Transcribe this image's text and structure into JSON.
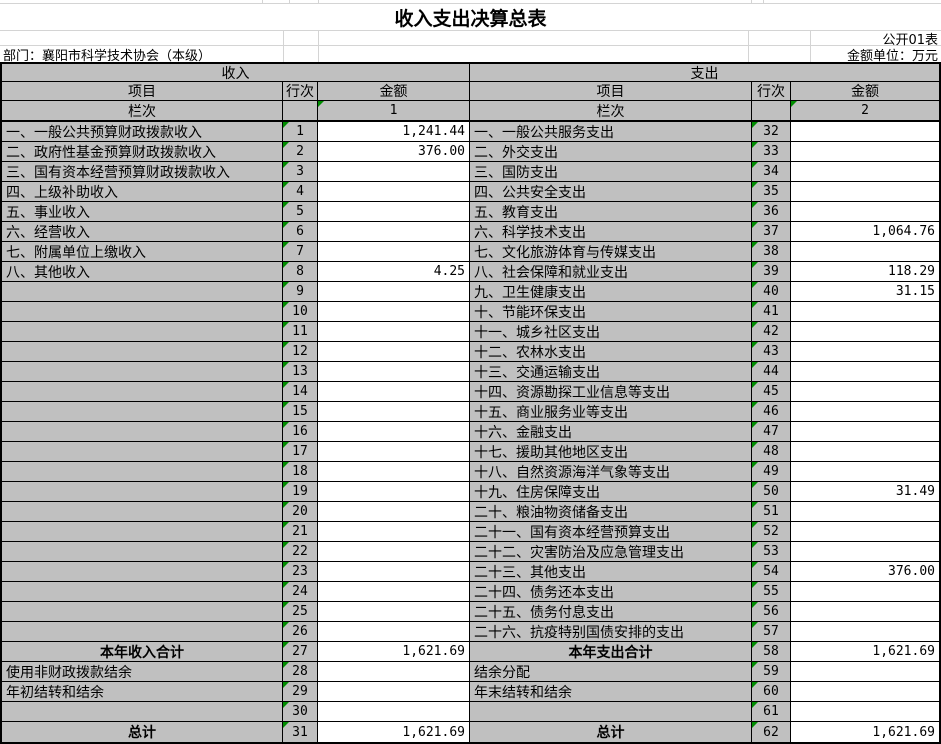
{
  "title": "收入支出决算总表",
  "meta": {
    "sheet_label": "公开01表",
    "department": "部门：襄阳市科学技术协会（本级）",
    "unit_label": "金额单位：万元"
  },
  "colors": {
    "cell_gray": "#c0c0c0",
    "grid_black": "#000000",
    "faint_gridline": "#d4d4d4",
    "flag_green": "#008c00"
  },
  "income": {
    "section_title": "收入",
    "col_headers": {
      "item": "项目",
      "line": "行次",
      "amount": "金额"
    },
    "lanci_label": "栏次",
    "lanci_value": "1",
    "rows": [
      {
        "item": "一、一般公共预算财政拨款收入",
        "line": "1",
        "amount": "1,241.44",
        "total": false
      },
      {
        "item": "二、政府性基金预算财政拨款收入",
        "line": "2",
        "amount": "376.00",
        "total": false
      },
      {
        "item": "三、国有资本经营预算财政拨款收入",
        "line": "3",
        "amount": "",
        "total": false
      },
      {
        "item": "四、上级补助收入",
        "line": "4",
        "amount": "",
        "total": false
      },
      {
        "item": "五、事业收入",
        "line": "5",
        "amount": "",
        "total": false
      },
      {
        "item": "六、经营收入",
        "line": "6",
        "amount": "",
        "total": false
      },
      {
        "item": "七、附属单位上缴收入",
        "line": "7",
        "amount": "",
        "total": false
      },
      {
        "item": "八、其他收入",
        "line": "8",
        "amount": "4.25",
        "total": false
      },
      {
        "item": "",
        "line": "9",
        "amount": "",
        "total": false
      },
      {
        "item": "",
        "line": "10",
        "amount": "",
        "total": false
      },
      {
        "item": "",
        "line": "11",
        "amount": "",
        "total": false
      },
      {
        "item": "",
        "line": "12",
        "amount": "",
        "total": false
      },
      {
        "item": "",
        "line": "13",
        "amount": "",
        "total": false
      },
      {
        "item": "",
        "line": "14",
        "amount": "",
        "total": false
      },
      {
        "item": "",
        "line": "15",
        "amount": "",
        "total": false
      },
      {
        "item": "",
        "line": "16",
        "amount": "",
        "total": false
      },
      {
        "item": "",
        "line": "17",
        "amount": "",
        "total": false
      },
      {
        "item": "",
        "line": "18",
        "amount": "",
        "total": false
      },
      {
        "item": "",
        "line": "19",
        "amount": "",
        "total": false
      },
      {
        "item": "",
        "line": "20",
        "amount": "",
        "total": false
      },
      {
        "item": "",
        "line": "21",
        "amount": "",
        "total": false
      },
      {
        "item": "",
        "line": "22",
        "amount": "",
        "total": false
      },
      {
        "item": "",
        "line": "23",
        "amount": "",
        "total": false
      },
      {
        "item": "",
        "line": "24",
        "amount": "",
        "total": false
      },
      {
        "item": "",
        "line": "25",
        "amount": "",
        "total": false
      },
      {
        "item": "",
        "line": "26",
        "amount": "",
        "total": false
      },
      {
        "item": "本年收入合计",
        "line": "27",
        "amount": "1,621.69",
        "total": true
      },
      {
        "item": "使用非财政拨款结余",
        "line": "28",
        "amount": "",
        "total": false
      },
      {
        "item": "年初结转和结余",
        "line": "29",
        "amount": "",
        "total": false
      },
      {
        "item": "",
        "line": "30",
        "amount": "",
        "total": false
      },
      {
        "item": "总计",
        "line": "31",
        "amount": "1,621.69",
        "total": true
      }
    ]
  },
  "expenditure": {
    "section_title": "支出",
    "col_headers": {
      "item": "项目",
      "line": "行次",
      "amount": "金额"
    },
    "lanci_label": "栏次",
    "lanci_value": "2",
    "rows": [
      {
        "item": "一、一般公共服务支出",
        "line": "32",
        "amount": "",
        "total": false
      },
      {
        "item": "二、外交支出",
        "line": "33",
        "amount": "",
        "total": false
      },
      {
        "item": "三、国防支出",
        "line": "34",
        "amount": "",
        "total": false
      },
      {
        "item": "四、公共安全支出",
        "line": "35",
        "amount": "",
        "total": false
      },
      {
        "item": "五、教育支出",
        "line": "36",
        "amount": "",
        "total": false
      },
      {
        "item": "六、科学技术支出",
        "line": "37",
        "amount": "1,064.76",
        "total": false
      },
      {
        "item": "七、文化旅游体育与传媒支出",
        "line": "38",
        "amount": "",
        "total": false
      },
      {
        "item": "八、社会保障和就业支出",
        "line": "39",
        "amount": "118.29",
        "total": false
      },
      {
        "item": "九、卫生健康支出",
        "line": "40",
        "amount": "31.15",
        "total": false
      },
      {
        "item": "十、节能环保支出",
        "line": "41",
        "amount": "",
        "total": false
      },
      {
        "item": "十一、城乡社区支出",
        "line": "42",
        "amount": "",
        "total": false
      },
      {
        "item": "十二、农林水支出",
        "line": "43",
        "amount": "",
        "total": false
      },
      {
        "item": "十三、交通运输支出",
        "line": "44",
        "amount": "",
        "total": false
      },
      {
        "item": "十四、资源勘探工业信息等支出",
        "line": "45",
        "amount": "",
        "total": false
      },
      {
        "item": "十五、商业服务业等支出",
        "line": "46",
        "amount": "",
        "total": false
      },
      {
        "item": "十六、金融支出",
        "line": "47",
        "amount": "",
        "total": false
      },
      {
        "item": "十七、援助其他地区支出",
        "line": "48",
        "amount": "",
        "total": false
      },
      {
        "item": "十八、自然资源海洋气象等支出",
        "line": "49",
        "amount": "",
        "total": false
      },
      {
        "item": "十九、住房保障支出",
        "line": "50",
        "amount": "31.49",
        "total": false
      },
      {
        "item": "二十、粮油物资储备支出",
        "line": "51",
        "amount": "",
        "total": false
      },
      {
        "item": "二十一、国有资本经营预算支出",
        "line": "52",
        "amount": "",
        "total": false
      },
      {
        "item": "二十二、灾害防治及应急管理支出",
        "line": "53",
        "amount": "",
        "total": false
      },
      {
        "item": "二十三、其他支出",
        "line": "54",
        "amount": "376.00",
        "total": false
      },
      {
        "item": "二十四、债务还本支出",
        "line": "55",
        "amount": "",
        "total": false
      },
      {
        "item": "二十五、债务付息支出",
        "line": "56",
        "amount": "",
        "total": false
      },
      {
        "item": "二十六、抗疫特别国债安排的支出",
        "line": "57",
        "amount": "",
        "total": false
      },
      {
        "item": "本年支出合计",
        "line": "58",
        "amount": "1,621.69",
        "total": true
      },
      {
        "item": "结余分配",
        "line": "59",
        "amount": "",
        "total": false
      },
      {
        "item": "年末结转和结余",
        "line": "60",
        "amount": "",
        "total": false
      },
      {
        "item": "",
        "line": "61",
        "amount": "",
        "total": false
      },
      {
        "item": "总计",
        "line": "62",
        "amount": "1,621.69",
        "total": true
      }
    ]
  }
}
